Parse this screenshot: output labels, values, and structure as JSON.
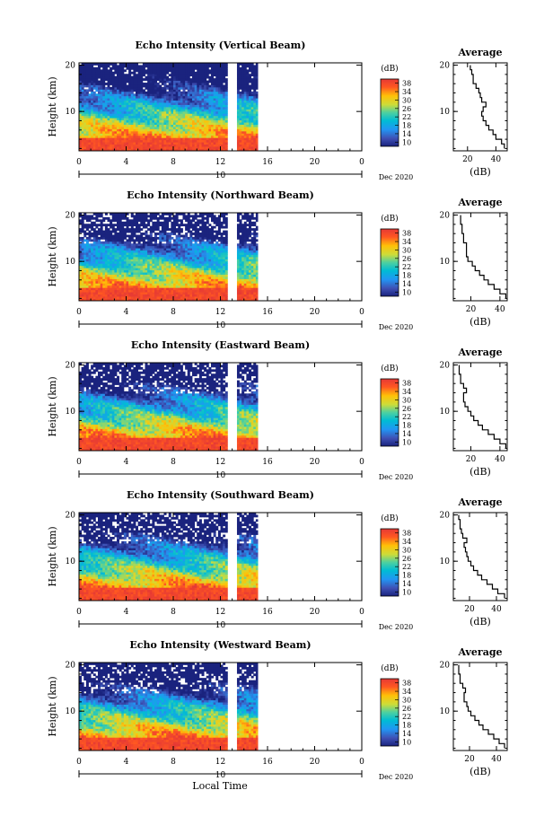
{
  "figure": {
    "xlabel_shared": "Local Time",
    "date_label": "Dec 2020",
    "day_label": "10"
  },
  "chart_data": [
    {
      "type": "heatmap",
      "title": "Echo Intensity (Vertical Beam)",
      "ylabel": "Height (km)",
      "x_ticks": [
        "0",
        "4",
        "8",
        "12",
        "16",
        "20",
        "0"
      ],
      "xlim": [
        0,
        24
      ],
      "y_ticks": [
        "10",
        "20"
      ],
      "ylim": [
        1.5,
        20.5
      ],
      "colorbar": {
        "label": "(dB)",
        "ticks": [
          "10",
          "14",
          "18",
          "22",
          "26",
          "30",
          "34",
          "38"
        ],
        "range": [
          8,
          40
        ]
      },
      "data_gaps_hours": [
        [
          12.7,
          13.4
        ],
        [
          15.2,
          24.0
        ]
      ],
      "profile": {
        "title": "Average",
        "xlabel": "(dB)",
        "x_ticks": [
          "20",
          "40"
        ],
        "xlim": [
          10,
          48
        ],
        "y_ticks": [
          "10",
          "20"
        ],
        "height_km": [
          2,
          3,
          4,
          5,
          6,
          7,
          8,
          9,
          10,
          11,
          12,
          13,
          14,
          15,
          16,
          17,
          18,
          19,
          20
        ],
        "db": [
          46,
          44,
          40,
          38,
          35,
          33,
          31,
          30,
          31,
          33,
          30,
          29,
          28,
          26,
          24,
          24,
          23,
          22,
          22
        ]
      }
    },
    {
      "type": "heatmap",
      "title": "Echo Intensity (Northward Beam)",
      "ylabel": "Height (km)",
      "x_ticks": [
        "0",
        "4",
        "8",
        "12",
        "16",
        "20",
        "0"
      ],
      "xlim": [
        0,
        24
      ],
      "y_ticks": [
        "10",
        "20"
      ],
      "ylim": [
        1.5,
        20.5
      ],
      "colorbar": {
        "label": "(dB)",
        "ticks": [
          "10",
          "14",
          "18",
          "22",
          "26",
          "30",
          "34",
          "38"
        ],
        "range": [
          8,
          40
        ]
      },
      "data_gaps_hours": [
        [
          12.7,
          13.4
        ],
        [
          15.2,
          24.0
        ]
      ],
      "profile": {
        "title": "Average",
        "xlabel": "(dB)",
        "x_ticks": [
          "20",
          "40"
        ],
        "xlim": [
          8,
          45
        ],
        "y_ticks": [
          "10",
          "20"
        ],
        "height_km": [
          2,
          3,
          4,
          5,
          6,
          7,
          8,
          9,
          10,
          11,
          12,
          13,
          14,
          15,
          16,
          17,
          18,
          19,
          20
        ],
        "db": [
          44,
          40,
          36,
          32,
          29,
          26,
          23,
          21,
          18,
          17,
          17,
          17,
          15,
          15,
          14,
          14,
          13,
          13,
          13
        ]
      }
    },
    {
      "type": "heatmap",
      "title": "Echo Intensity (Eastward Beam)",
      "ylabel": "Height (km)",
      "x_ticks": [
        "0",
        "4",
        "8",
        "12",
        "16",
        "20",
        "0"
      ],
      "xlim": [
        0,
        24
      ],
      "y_ticks": [
        "10",
        "20"
      ],
      "ylim": [
        1.5,
        20.5
      ],
      "colorbar": {
        "label": "(dB)",
        "ticks": [
          "10",
          "14",
          "18",
          "22",
          "26",
          "30",
          "34",
          "38"
        ],
        "range": [
          8,
          40
        ]
      },
      "data_gaps_hours": [
        [
          12.7,
          13.4
        ],
        [
          15.2,
          24.0
        ]
      ],
      "profile": {
        "title": "Average",
        "xlabel": "(dB)",
        "x_ticks": [
          "20",
          "40"
        ],
        "xlim": [
          8,
          45
        ],
        "y_ticks": [
          "10",
          "20"
        ],
        "height_km": [
          2,
          3,
          4,
          5,
          6,
          7,
          8,
          9,
          10,
          11,
          12,
          13,
          14,
          15,
          16,
          17,
          18,
          19,
          20
        ],
        "db": [
          44,
          40,
          36,
          32,
          28,
          25,
          22,
          20,
          18,
          16,
          15,
          15,
          17,
          15,
          13,
          13,
          12,
          12,
          12
        ]
      }
    },
    {
      "type": "heatmap",
      "title": "Echo Intensity (Southward Beam)",
      "ylabel": "Height (km)",
      "x_ticks": [
        "0",
        "4",
        "8",
        "12",
        "16",
        "20",
        "0"
      ],
      "xlim": [
        0,
        24
      ],
      "y_ticks": [
        "10",
        "20"
      ],
      "ylim": [
        1.5,
        20.5
      ],
      "colorbar": {
        "label": "(dB)",
        "ticks": [
          "10",
          "14",
          "18",
          "22",
          "26",
          "30",
          "34",
          "38"
        ],
        "range": [
          8,
          40
        ]
      },
      "data_gaps_hours": [
        [
          12.7,
          13.4
        ],
        [
          15.2,
          24.0
        ]
      ],
      "profile": {
        "title": "Average",
        "xlabel": "(dB)",
        "x_ticks": [
          "20",
          "40"
        ],
        "xlim": [
          8,
          48
        ],
        "y_ticks": [
          "10",
          "20"
        ],
        "height_km": [
          2,
          3,
          4,
          5,
          6,
          7,
          8,
          9,
          10,
          11,
          12,
          13,
          14,
          15,
          16,
          17,
          18,
          19,
          20
        ],
        "db": [
          46,
          41,
          37,
          33,
          29,
          26,
          23,
          21,
          19,
          18,
          17,
          16,
          18,
          15,
          14,
          13,
          13,
          12,
          12
        ]
      }
    },
    {
      "type": "heatmap",
      "title": "Echo Intensity (Westward Beam)",
      "ylabel": "Height (km)",
      "x_ticks": [
        "0",
        "4",
        "8",
        "12",
        "16",
        "20",
        "0"
      ],
      "xlim": [
        0,
        24
      ],
      "y_ticks": [
        "10",
        "20"
      ],
      "ylim": [
        1.5,
        20.5
      ],
      "colorbar": {
        "label": "(dB)",
        "ticks": [
          "10",
          "14",
          "18",
          "22",
          "26",
          "30",
          "34",
          "38"
        ],
        "range": [
          8,
          40
        ]
      },
      "data_gaps_hours": [
        [
          12.7,
          13.4
        ],
        [
          15.2,
          24.0
        ]
      ],
      "profile": {
        "title": "Average",
        "xlabel": "(dB)",
        "x_ticks": [
          "20",
          "40"
        ],
        "xlim": [
          8,
          48
        ],
        "y_ticks": [
          "10",
          "20"
        ],
        "height_km": [
          2,
          3,
          4,
          5,
          6,
          7,
          8,
          9,
          10,
          11,
          12,
          13,
          14,
          15,
          16,
          17,
          18,
          19,
          20
        ],
        "db": [
          46,
          42,
          38,
          34,
          30,
          27,
          24,
          21,
          19,
          18,
          16,
          16,
          17,
          15,
          13,
          13,
          12,
          12,
          12
        ]
      }
    }
  ]
}
